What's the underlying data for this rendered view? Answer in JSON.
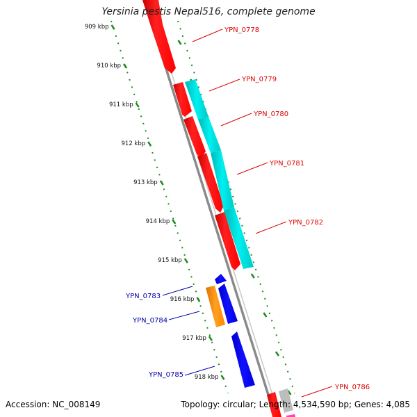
{
  "header": {
    "title": "Yersinia pestis Nepal516, complete genome"
  },
  "footer": {
    "accession": "Accession: NC_008149",
    "summary": "Topology: circular; Length: 4,534,590 bp; Genes: 4,085"
  },
  "colors": {
    "backbone": "#888888",
    "ruler": "#1e8a1e",
    "gene_red": "#ff0000",
    "gene_cyan": "#00d0d0",
    "gene_blue": "#0000dd",
    "gene_orange": "#ff8800",
    "gene_gray": "#bbbbbb",
    "gene_pink": "#ff44aa",
    "label_red": "#dd0000",
    "label_blue": "#0000aa"
  },
  "ruler": {
    "ticks": [
      "909 kbp",
      "910 kbp",
      "911 kbp",
      "912 kbp",
      "913 kbp",
      "914 kbp",
      "915 kbp",
      "916 kbp",
      "917 kbp",
      "918 kbp"
    ]
  },
  "genes": [
    {
      "label": "YPN_0778",
      "strand": "forward",
      "color": "red"
    },
    {
      "label": "YPN_0779",
      "strand": "forward",
      "color": "red"
    },
    {
      "label": "YPN_0780",
      "strand": "forward",
      "color": "red"
    },
    {
      "label": "YPN_0781",
      "strand": "forward",
      "color": "red"
    },
    {
      "label": "YPN_0782",
      "strand": "forward",
      "color": "red"
    },
    {
      "label": "YPN_0783",
      "strand": "reverse",
      "color": "blue"
    },
    {
      "label": "YPN_0784",
      "strand": "reverse",
      "color": "blue"
    },
    {
      "label": "YPN_0785",
      "strand": "reverse",
      "color": "blue"
    },
    {
      "label": "YPN_0786",
      "strand": "forward",
      "color": "red"
    }
  ]
}
